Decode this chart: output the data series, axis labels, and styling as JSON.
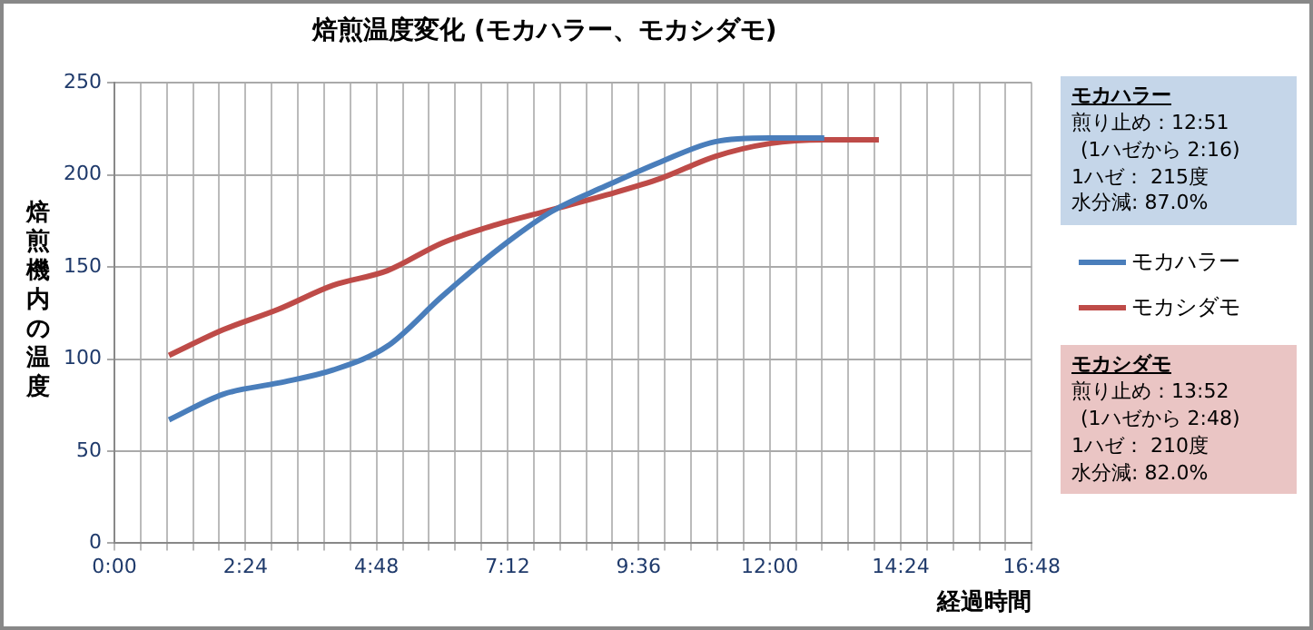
{
  "chart_data": {
    "type": "line",
    "title": "焙煎温度変化 (モカハラー、モカシダモ)",
    "xlabel": "経過時間",
    "ylabel": "焙煎機内の温度",
    "x": [
      1,
      2,
      3,
      4,
      5,
      6,
      7,
      8,
      9,
      10,
      11,
      12,
      13,
      14
    ],
    "series": [
      {
        "name": "モカハラー",
        "color": "#4a7ebb",
        "values": [
          67,
          81,
          87,
          94,
          107,
          134,
          159,
          180,
          194,
          207,
          218,
          220,
          220,
          null
        ]
      },
      {
        "name": "モカシダモ",
        "color": "#be4b48",
        "values": [
          102,
          116,
          127,
          140,
          148,
          163,
          173,
          181,
          189,
          198,
          210,
          217,
          219,
          219
        ]
      }
    ],
    "xlim": [
      0,
      16.8
    ],
    "xticks": [
      {
        "value": 0,
        "label": "0:00"
      },
      {
        "value": 0.48,
        "label": null
      },
      {
        "value": 0.96,
        "label": null
      },
      {
        "value": 1.44,
        "label": null
      },
      {
        "value": 1.92,
        "label": null
      },
      {
        "value": 2.4,
        "label": "2:24"
      },
      {
        "value": 2.88,
        "label": null
      },
      {
        "value": 3.36,
        "label": null
      },
      {
        "value": 3.84,
        "label": null
      },
      {
        "value": 4.32,
        "label": null
      },
      {
        "value": 4.8,
        "label": "4:48"
      },
      {
        "value": 5.28,
        "label": null
      },
      {
        "value": 5.76,
        "label": null
      },
      {
        "value": 6.24,
        "label": null
      },
      {
        "value": 6.72,
        "label": null
      },
      {
        "value": 7.2,
        "label": "7:12"
      },
      {
        "value": 7.68,
        "label": null
      },
      {
        "value": 8.16,
        "label": null
      },
      {
        "value": 8.64,
        "label": null
      },
      {
        "value": 9.12,
        "label": null
      },
      {
        "value": 9.6,
        "label": "9:36"
      },
      {
        "value": 10.08,
        "label": null
      },
      {
        "value": 10.56,
        "label": null
      },
      {
        "value": 11.04,
        "label": null
      },
      {
        "value": 11.52,
        "label": null
      },
      {
        "value": 12,
        "label": "12:00"
      },
      {
        "value": 12.48,
        "label": null
      },
      {
        "value": 12.96,
        "label": null
      },
      {
        "value": 13.44,
        "label": null
      },
      {
        "value": 13.92,
        "label": null
      },
      {
        "value": 14.4,
        "label": "14:24"
      },
      {
        "value": 14.88,
        "label": null
      },
      {
        "value": 15.36,
        "label": null
      },
      {
        "value": 15.84,
        "label": null
      },
      {
        "value": 16.32,
        "label": null
      },
      {
        "value": 16.8,
        "label": "16:48"
      }
    ],
    "ylim": [
      0,
      250
    ],
    "yticks": [
      0,
      50,
      100,
      150,
      200,
      250
    ],
    "grid": true,
    "legend": "right",
    "marker": "none",
    "line_style": "solid",
    "annotations": [
      "モカハラー",
      "煎り止め：12:51",
      "(1ハゼから 2:16)",
      "1ハゼ： 215度",
      "水分減: 87.0%",
      "モカシダモ",
      "煎り止め：13:52",
      "(1ハゼから 2:48)",
      "1ハゼ： 210度",
      "水分減: 82.0%"
    ]
  }
}
